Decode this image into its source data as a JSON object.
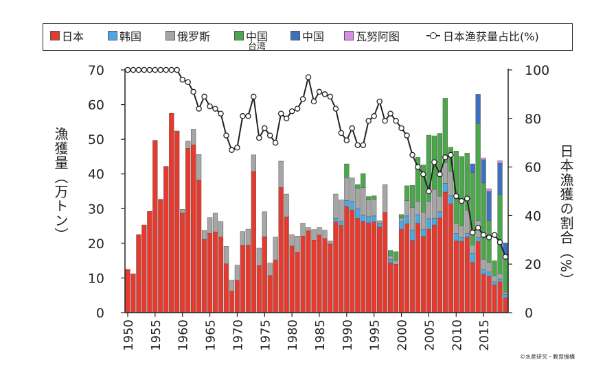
{
  "legend": {
    "japan": "日本",
    "korea": "韩国",
    "russia": "俄罗斯",
    "taiwan_line1": "中国",
    "taiwan_line2": "台湾",
    "china": "中国",
    "vanuatu": "瓦努阿图",
    "share": "日本渔获量占比(%)"
  },
  "colors": {
    "japan": "#e63a2e",
    "korea": "#4aa9e3",
    "russia": "#a6a6a6",
    "taiwan": "#4aa84a",
    "china": "#3f6fbf",
    "vanuatu": "#d98ee6"
  },
  "credit": "©水産研究・教育機構",
  "chart_data": {
    "type": "bar",
    "stacked": true,
    "x": [
      1950,
      1951,
      1952,
      1953,
      1954,
      1955,
      1956,
      1957,
      1958,
      1959,
      1960,
      1961,
      1962,
      1963,
      1964,
      1965,
      1966,
      1967,
      1968,
      1969,
      1970,
      1971,
      1972,
      1973,
      1974,
      1975,
      1976,
      1977,
      1978,
      1979,
      1980,
      1981,
      1982,
      1983,
      1984,
      1985,
      1986,
      1987,
      1988,
      1989,
      1990,
      1991,
      1992,
      1993,
      1994,
      1995,
      1996,
      1997,
      1998,
      1999,
      2000,
      2001,
      2002,
      2003,
      2004,
      2005,
      2006,
      2007,
      2008,
      2009,
      2010,
      2011,
      2012,
      2013,
      2014,
      2015,
      2016,
      2017,
      2018,
      2019
    ],
    "xticks": [
      1950,
      1955,
      1960,
      1965,
      1970,
      1975,
      1980,
      1985,
      1990,
      1995,
      2000,
      2005,
      2010,
      2015
    ],
    "ylabel_left": "漁獲量（万トン）",
    "ylabel_right": "日本漁獲の割合（%）",
    "ylim_left": [
      0,
      70
    ],
    "yticks_left": [
      0,
      10,
      20,
      30,
      40,
      50,
      60,
      70
    ],
    "ylim_right": [
      0,
      100
    ],
    "yticks_right": [
      0,
      20,
      40,
      60,
      80,
      100
    ],
    "series": [
      {
        "name": "日本",
        "key": "japan",
        "values": [
          12.5,
          11.2,
          22.5,
          25.3,
          29.2,
          49.7,
          32.7,
          42.2,
          57.5,
          52.4,
          28.7,
          47.4,
          48.4,
          38.2,
          21.1,
          22.9,
          23.3,
          21.8,
          14.1,
          6.2,
          9.3,
          19.4,
          19.5,
          40.7,
          13.6,
          21.9,
          10.7,
          15.2,
          36.1,
          27.6,
          19.2,
          17.4,
          22.1,
          23.6,
          20.9,
          22.4,
          21.4,
          19.8,
          26.2,
          25.2,
          30.6,
          29.6,
          27.2,
          26.3,
          25.9,
          26.2,
          24.7,
          28.9,
          14.4,
          14.0,
          24.1,
          25.6,
          20.8,
          25.8,
          22.0,
          24.1,
          25.3,
          27.3,
          34.8,
          31.4,
          20.7,
          20.6,
          21.8,
          14.5,
          20.5,
          11.1,
          10.5,
          8.0,
          8.9,
          4.3
        ]
      },
      {
        "name": "韩国",
        "key": "korea",
        "values": [
          0,
          0,
          0,
          0,
          0,
          0,
          0,
          0,
          0,
          0,
          0,
          0,
          0,
          0,
          0,
          0,
          0,
          0,
          0,
          0,
          0,
          0,
          0,
          0,
          0,
          0,
          0,
          0,
          0,
          0,
          0,
          0,
          0,
          0,
          0,
          0,
          0,
          0,
          1.0,
          1.2,
          1.8,
          2.5,
          2.7,
          1.8,
          1.8,
          1.7,
          1.0,
          0,
          1.0,
          0,
          2.2,
          2.3,
          2.9,
          2.4,
          2.0,
          3.0,
          1.9,
          1.8,
          2.5,
          2.3,
          2.1,
          1.0,
          1.0,
          2.6,
          1.1,
          1.3,
          1.2,
          0.9,
          0.8,
          1.0
        ]
      },
      {
        "name": "俄罗斯",
        "key": "russia",
        "values": [
          0,
          0,
          0,
          0,
          0,
          0,
          0,
          0,
          0,
          0,
          1.1,
          2.1,
          4.5,
          7.4,
          2.6,
          4.5,
          5.4,
          4.5,
          5.0,
          3.2,
          4.4,
          4.0,
          4.6,
          4.8,
          5.0,
          7.2,
          3.6,
          6.6,
          7.6,
          6.6,
          3.3,
          4.7,
          3.7,
          1.0,
          3.1,
          2.2,
          2.4,
          0.9,
          7.0,
          6.1,
          6.5,
          6.8,
          6.0,
          8.0,
          4.8,
          4.8,
          0.8,
          8.0,
          1.0,
          1.0,
          1.0,
          4.4,
          6.6,
          3.9,
          5.0,
          5.0,
          8.4,
          4.5,
          6.0,
          7.0,
          3.0,
          3.4,
          6.7,
          2.4,
          5.0,
          3.0,
          2.8,
          1.8,
          1.5,
          0.6
        ]
      },
      {
        "name": "中国台湾",
        "key": "taiwan",
        "values": [
          0,
          0,
          0,
          0,
          0,
          0,
          0,
          0,
          0,
          0,
          0,
          0,
          0,
          0,
          0,
          0,
          0,
          0,
          0,
          0,
          0,
          0,
          0,
          0,
          0,
          0,
          0,
          0,
          0,
          0,
          0,
          0,
          0,
          0,
          0,
          0,
          0,
          0,
          0,
          0,
          4.0,
          0,
          1.0,
          4.0,
          1.0,
          1.0,
          0,
          0,
          1.5,
          2.6,
          1.0,
          4.3,
          6.4,
          12.7,
          13.6,
          19.1,
          15.4,
          18.1,
          18.5,
          7.0,
          20.8,
          20.0,
          16.5,
          20.9,
          27.9,
          22.0,
          12.1,
          4.3,
          22.8,
          10.7
        ]
      },
      {
        "name": "中国",
        "key": "china",
        "values": [
          0,
          0,
          0,
          0,
          0,
          0,
          0,
          0,
          0,
          0,
          0,
          0,
          0,
          0,
          0,
          0,
          0,
          0,
          0,
          0,
          0,
          0,
          0,
          0,
          0,
          0,
          0,
          0,
          0,
          0,
          0,
          0,
          0,
          0,
          0,
          0,
          0,
          0,
          0,
          0,
          0,
          0,
          0,
          0,
          0,
          0,
          0,
          0,
          0,
          0,
          0,
          0,
          0,
          0,
          0,
          0,
          0,
          0,
          0,
          0,
          0,
          0,
          0,
          2.5,
          8.5,
          6.7,
          8.3,
          0,
          9.1,
          3.5
        ]
      },
      {
        "name": "瓦努阿图",
        "key": "vanuatu",
        "values": [
          0,
          0,
          0,
          0,
          0,
          0,
          0,
          0,
          0,
          0,
          0,
          0,
          0,
          0,
          0,
          0,
          0,
          0,
          0,
          0,
          0,
          0,
          0,
          0,
          0,
          0,
          0,
          0,
          0,
          0,
          0,
          0,
          0,
          0,
          0,
          0,
          0,
          0,
          0,
          0,
          0,
          0,
          0,
          0,
          0,
          0,
          0,
          0,
          0,
          0,
          0,
          0,
          0,
          0,
          0,
          0,
          0,
          0,
          0,
          0,
          0,
          0,
          0,
          0,
          0,
          0.5,
          0.8,
          0,
          0.7,
          0
        ]
      },
      {
        "name": "日本渔获量占比(%)",
        "key": "share",
        "axis": "right",
        "type": "line",
        "values": [
          100,
          100,
          100,
          100,
          100,
          100,
          100,
          100,
          100,
          100,
          96,
          95,
          91,
          84,
          89,
          85,
          84,
          82,
          73,
          67,
          68,
          81,
          81,
          89,
          72,
          76,
          73,
          70,
          82,
          80,
          83,
          84,
          88,
          97,
          87,
          91,
          90,
          89,
          84,
          74,
          71,
          76,
          69,
          69,
          79,
          81,
          87,
          79,
          82,
          79,
          76,
          73,
          65,
          60,
          57,
          50,
          62,
          57,
          64,
          65,
          48,
          46,
          47,
          33,
          35,
          32,
          31,
          32,
          29,
          23
        ]
      }
    ]
  }
}
